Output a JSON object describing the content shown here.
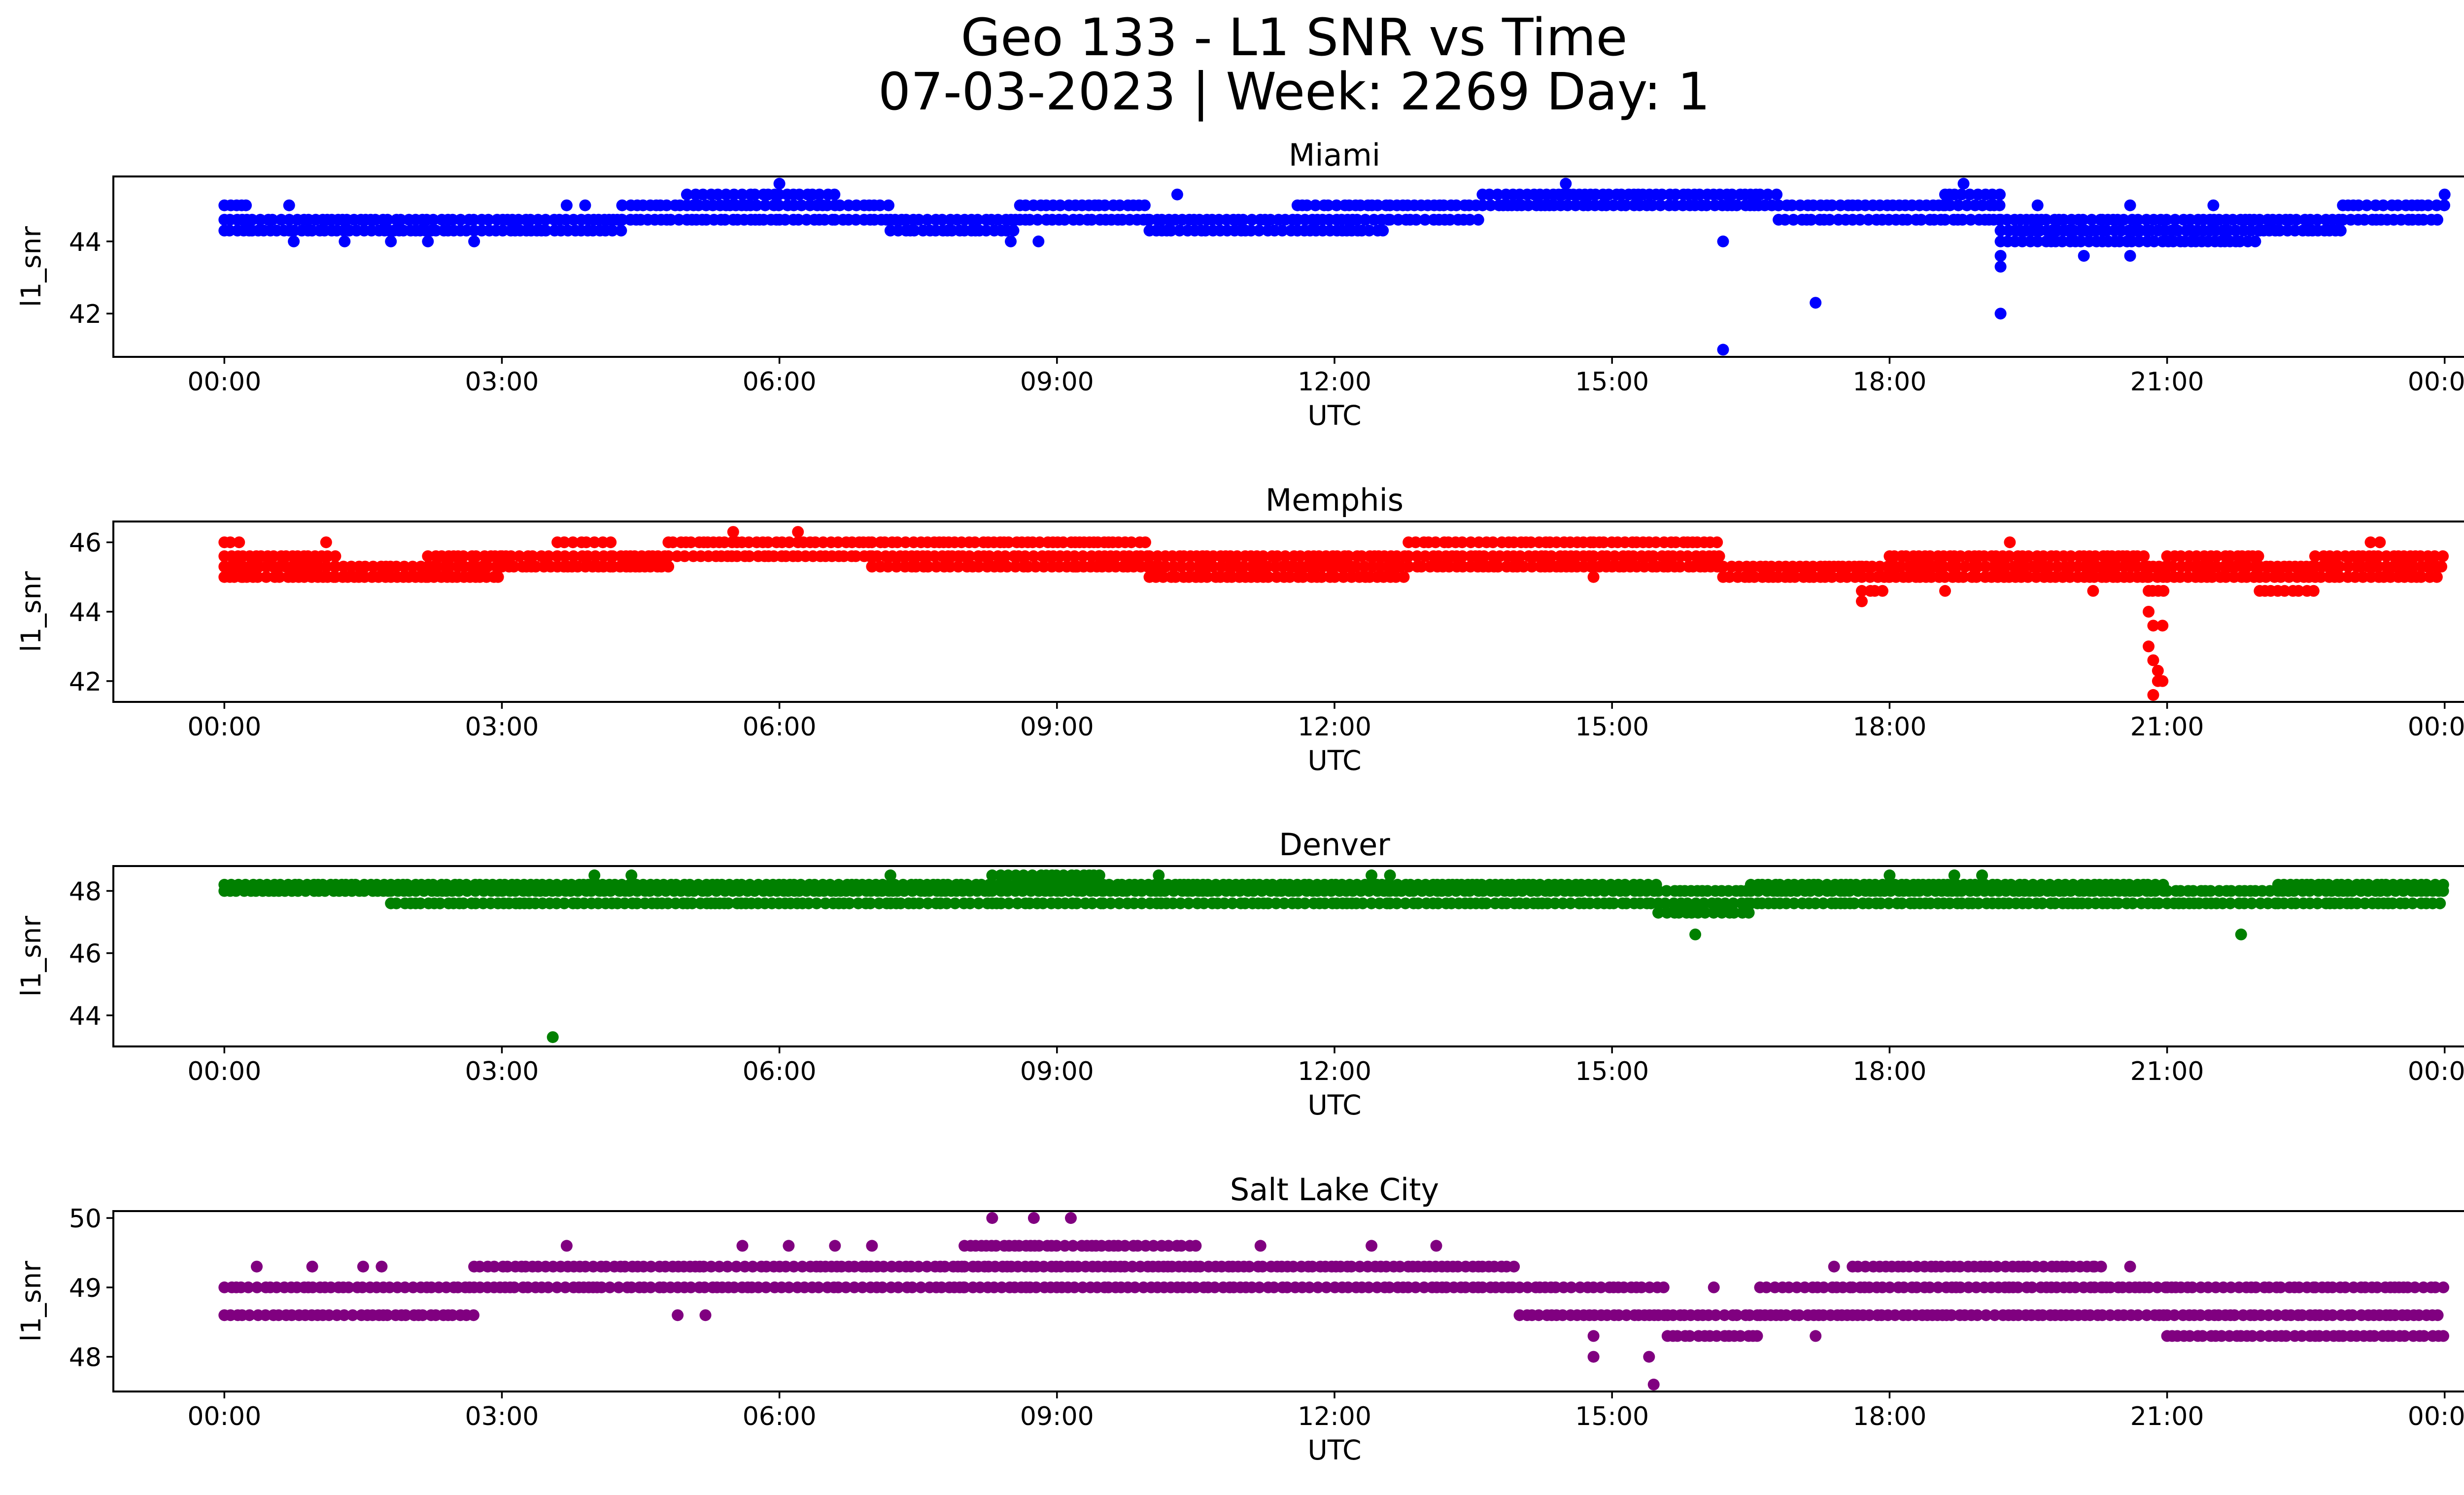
{
  "figure": {
    "title_line1": "Geo 133 - L1 SNR vs Time",
    "title_line2": "07-03-2023 | Week: 2269 Day: 1"
  },
  "chart_data": [
    {
      "type": "scatter",
      "title": "Miami",
      "xlabel": "UTC",
      "ylabel": "l1_snr",
      "color": "#0000ff",
      "xlim_hours": [
        -1.2,
        25.2
      ],
      "ylim": [
        40.8,
        45.8
      ],
      "xticks_hours": [
        0,
        3,
        6,
        9,
        12,
        15,
        18,
        21,
        24
      ],
      "xtick_labels": [
        "00:00",
        "03:00",
        "06:00",
        "09:00",
        "12:00",
        "15:00",
        "18:00",
        "21:00",
        "00:00"
      ],
      "yticks": [
        42,
        44
      ],
      "segments": [
        {
          "start": 0.0,
          "end": 0.3,
          "levels": [
            44.3,
            44.6,
            45.0
          ]
        },
        {
          "start": 0.3,
          "end": 4.3,
          "levels": [
            44.3,
            44.6
          ]
        },
        {
          "start": 4.3,
          "end": 5.0,
          "levels": [
            44.6,
            45.0
          ]
        },
        {
          "start": 5.0,
          "end": 6.6,
          "levels": [
            44.6,
            45.0,
            45.3
          ]
        },
        {
          "start": 6.6,
          "end": 7.2,
          "levels": [
            44.6,
            45.0
          ]
        },
        {
          "start": 7.2,
          "end": 8.6,
          "levels": [
            44.3,
            44.6
          ]
        },
        {
          "start": 8.6,
          "end": 10.0,
          "levels": [
            44.6,
            45.0
          ]
        },
        {
          "start": 10.0,
          "end": 11.6,
          "levels": [
            44.3,
            44.6
          ]
        },
        {
          "start": 11.6,
          "end": 12.6,
          "levels": [
            44.3,
            44.6,
            45.0
          ]
        },
        {
          "start": 12.6,
          "end": 13.6,
          "levels": [
            44.6,
            45.0
          ]
        },
        {
          "start": 13.6,
          "end": 16.8,
          "levels": [
            45.0,
            45.3
          ]
        },
        {
          "start": 16.8,
          "end": 17.6,
          "levels": [
            44.6,
            45.0
          ]
        },
        {
          "start": 17.6,
          "end": 18.6,
          "levels": [
            44.6,
            45.0
          ]
        },
        {
          "start": 18.6,
          "end": 19.2,
          "levels": [
            44.6,
            45.0,
            45.3
          ]
        },
        {
          "start": 19.2,
          "end": 20.3,
          "levels": [
            44.0,
            44.3,
            44.6
          ]
        },
        {
          "start": 20.3,
          "end": 22.0,
          "levels": [
            44.0,
            44.3,
            44.6
          ]
        },
        {
          "start": 22.0,
          "end": 22.9,
          "levels": [
            44.3,
            44.6
          ]
        },
        {
          "start": 22.9,
          "end": 24.0,
          "levels": [
            44.6,
            45.0
          ]
        }
      ],
      "scattered_points": [
        [
          0.7,
          45.0
        ],
        [
          0.75,
          44.0
        ],
        [
          1.3,
          44.0
        ],
        [
          1.8,
          44.0
        ],
        [
          2.2,
          44.0
        ],
        [
          2.7,
          44.0
        ],
        [
          3.7,
          45.0
        ],
        [
          3.9,
          45.0
        ],
        [
          6.0,
          45.6
        ],
        [
          6.0,
          44.6
        ],
        [
          8.5,
          44.0
        ],
        [
          8.8,
          44.0
        ],
        [
          10.3,
          45.3
        ],
        [
          14.5,
          45.6
        ],
        [
          16.2,
          44.0
        ],
        [
          16.2,
          41.0
        ],
        [
          17.2,
          42.3
        ],
        [
          18.8,
          45.6
        ],
        [
          19.2,
          43.6
        ],
        [
          19.2,
          43.3
        ],
        [
          19.2,
          42.0
        ],
        [
          19.6,
          45.0
        ],
        [
          20.1,
          43.6
        ],
        [
          20.6,
          43.6
        ],
        [
          20.6,
          45.0
        ],
        [
          21.5,
          45.0
        ],
        [
          24.0,
          45.3
        ]
      ]
    },
    {
      "type": "scatter",
      "title": "Memphis",
      "xlabel": "UTC",
      "ylabel": "l1_snr",
      "color": "#ff0000",
      "xlim_hours": [
        -1.2,
        25.2
      ],
      "ylim": [
        41.4,
        46.6
      ],
      "xticks_hours": [
        0,
        3,
        6,
        9,
        12,
        15,
        18,
        21,
        24
      ],
      "xtick_labels": [
        "00:00",
        "03:00",
        "06:00",
        "09:00",
        "12:00",
        "15:00",
        "18:00",
        "21:00",
        "00:00"
      ],
      "yticks": [
        42,
        44,
        46
      ],
      "segments": [
        {
          "start": 0.0,
          "end": 0.2,
          "levels": [
            45.0,
            45.3,
            45.6,
            46.0
          ]
        },
        {
          "start": 0.2,
          "end": 1.2,
          "levels": [
            45.0,
            45.3,
            45.6
          ]
        },
        {
          "start": 1.2,
          "end": 2.2,
          "levels": [
            45.0,
            45.3
          ]
        },
        {
          "start": 2.2,
          "end": 3.0,
          "levels": [
            45.0,
            45.3,
            45.6
          ]
        },
        {
          "start": 3.0,
          "end": 3.6,
          "levels": [
            45.3,
            45.6
          ]
        },
        {
          "start": 3.6,
          "end": 4.2,
          "levels": [
            45.3,
            45.6,
            46.0
          ]
        },
        {
          "start": 4.2,
          "end": 4.8,
          "levels": [
            45.3,
            45.6
          ]
        },
        {
          "start": 4.8,
          "end": 6.2,
          "levels": [
            45.6,
            46.0
          ]
        },
        {
          "start": 6.2,
          "end": 7.0,
          "levels": [
            45.6,
            46.0
          ]
        },
        {
          "start": 7.0,
          "end": 10.0,
          "levels": [
            45.3,
            45.6,
            46.0
          ]
        },
        {
          "start": 10.0,
          "end": 12.8,
          "levels": [
            45.0,
            45.3,
            45.6
          ]
        },
        {
          "start": 12.8,
          "end": 14.8,
          "levels": [
            45.3,
            45.6,
            46.0
          ]
        },
        {
          "start": 14.8,
          "end": 16.2,
          "levels": [
            45.3,
            45.6,
            46.0
          ]
        },
        {
          "start": 16.2,
          "end": 17.7,
          "levels": [
            45.0,
            45.3
          ]
        },
        {
          "start": 17.7,
          "end": 18.0,
          "levels": [
            44.6,
            45.0,
            45.3
          ]
        },
        {
          "start": 18.0,
          "end": 20.8,
          "levels": [
            45.0,
            45.3,
            45.6
          ]
        },
        {
          "start": 20.8,
          "end": 21.0,
          "levels": [
            44.6,
            45.0,
            45.3
          ]
        },
        {
          "start": 21.0,
          "end": 22.0,
          "levels": [
            45.0,
            45.3,
            45.6
          ]
        },
        {
          "start": 22.0,
          "end": 22.6,
          "levels": [
            44.6,
            45.0,
            45.3
          ]
        },
        {
          "start": 22.6,
          "end": 24.0,
          "levels": [
            45.0,
            45.3,
            45.6
          ]
        }
      ],
      "scattered_points": [
        [
          1.1,
          46.0
        ],
        [
          5.5,
          46.3
        ],
        [
          6.2,
          46.3
        ],
        [
          9.2,
          45.3
        ],
        [
          10.5,
          45.0
        ],
        [
          14.8,
          45.0
        ],
        [
          17.7,
          44.3
        ],
        [
          18.6,
          44.6
        ],
        [
          19.3,
          46.0
        ],
        [
          20.2,
          44.6
        ],
        [
          20.8,
          44.0
        ],
        [
          20.85,
          43.6
        ],
        [
          20.8,
          43.0
        ],
        [
          20.85,
          42.6
        ],
        [
          20.9,
          42.3
        ],
        [
          20.95,
          42.0
        ],
        [
          20.85,
          41.6
        ],
        [
          20.95,
          43.6
        ],
        [
          20.9,
          42.0
        ],
        [
          23.2,
          46.0
        ],
        [
          23.3,
          46.0
        ]
      ]
    },
    {
      "type": "scatter",
      "title": "Denver",
      "xlabel": "UTC",
      "ylabel": "l1_snr",
      "color": "#008000",
      "xlim_hours": [
        -1.2,
        25.2
      ],
      "ylim": [
        43.0,
        48.8
      ],
      "xticks_hours": [
        0,
        3,
        6,
        9,
        12,
        15,
        18,
        21,
        24
      ],
      "xtick_labels": [
        "00:00",
        "03:00",
        "06:00",
        "09:00",
        "12:00",
        "15:00",
        "18:00",
        "21:00",
        "00:00"
      ],
      "yticks": [
        44,
        46,
        48
      ],
      "segments": [
        {
          "start": 0.0,
          "end": 1.8,
          "levels": [
            48.0,
            48.2
          ]
        },
        {
          "start": 1.8,
          "end": 8.3,
          "levels": [
            47.6,
            48.0,
            48.2
          ]
        },
        {
          "start": 8.3,
          "end": 9.5,
          "levels": [
            47.6,
            48.0,
            48.2,
            48.5
          ]
        },
        {
          "start": 9.5,
          "end": 12.6,
          "levels": [
            47.6,
            48.0,
            48.2
          ]
        },
        {
          "start": 12.6,
          "end": 15.5,
          "levels": [
            47.6,
            48.0,
            48.2
          ]
        },
        {
          "start": 15.5,
          "end": 16.5,
          "levels": [
            47.3,
            47.6,
            48.0
          ]
        },
        {
          "start": 16.5,
          "end": 21.0,
          "levels": [
            47.6,
            48.0,
            48.2
          ]
        },
        {
          "start": 21.0,
          "end": 22.2,
          "levels": [
            47.6,
            48.0
          ]
        },
        {
          "start": 22.2,
          "end": 24.0,
          "levels": [
            47.6,
            48.0,
            48.2
          ]
        }
      ],
      "scattered_points": [
        [
          3.55,
          43.3
        ],
        [
          4.0,
          48.5
        ],
        [
          4.4,
          48.5
        ],
        [
          7.2,
          48.5
        ],
        [
          10.1,
          48.5
        ],
        [
          12.4,
          48.5
        ],
        [
          12.6,
          48.5
        ],
        [
          15.9,
          46.6
        ],
        [
          17.2,
          47.6
        ],
        [
          18.0,
          48.5
        ],
        [
          18.7,
          48.5
        ],
        [
          19.0,
          48.5
        ],
        [
          21.8,
          46.6
        ]
      ]
    },
    {
      "type": "scatter",
      "title": "Salt Lake City",
      "xlabel": "UTC",
      "ylabel": "l1_snr",
      "color": "#800080",
      "xlim_hours": [
        -1.2,
        25.2
      ],
      "ylim": [
        47.5,
        50.1
      ],
      "xticks_hours": [
        0,
        3,
        6,
        9,
        12,
        15,
        18,
        21,
        24
      ],
      "xtick_labels": [
        "00:00",
        "03:00",
        "06:00",
        "09:00",
        "12:00",
        "15:00",
        "18:00",
        "21:00",
        "00:00"
      ],
      "yticks": [
        48,
        49,
        50
      ],
      "segments": [
        {
          "start": 0.0,
          "end": 2.7,
          "levels": [
            48.6,
            49.0
          ]
        },
        {
          "start": 2.7,
          "end": 8.0,
          "levels": [
            49.0,
            49.3
          ]
        },
        {
          "start": 8.0,
          "end": 10.5,
          "levels": [
            49.0,
            49.3,
            49.6
          ]
        },
        {
          "start": 10.5,
          "end": 14.0,
          "levels": [
            49.0,
            49.3
          ]
        },
        {
          "start": 14.0,
          "end": 15.6,
          "levels": [
            48.6,
            49.0
          ]
        },
        {
          "start": 15.6,
          "end": 16.6,
          "levels": [
            48.3,
            48.6
          ]
        },
        {
          "start": 16.6,
          "end": 17.6,
          "levels": [
            48.6,
            49.0
          ]
        },
        {
          "start": 17.6,
          "end": 20.3,
          "levels": [
            48.6,
            49.0,
            49.3
          ]
        },
        {
          "start": 20.3,
          "end": 21.0,
          "levels": [
            48.6,
            49.0
          ]
        },
        {
          "start": 21.0,
          "end": 22.6,
          "levels": [
            48.3,
            48.6,
            49.0
          ]
        },
        {
          "start": 22.6,
          "end": 24.0,
          "levels": [
            48.3,
            48.6,
            49.0
          ]
        }
      ],
      "scattered_points": [
        [
          0.35,
          49.3
        ],
        [
          0.95,
          49.3
        ],
        [
          1.5,
          49.3
        ],
        [
          1.7,
          49.3
        ],
        [
          3.7,
          49.6
        ],
        [
          4.9,
          48.6
        ],
        [
          5.2,
          48.6
        ],
        [
          5.6,
          49.6
        ],
        [
          6.1,
          49.6
        ],
        [
          6.6,
          49.6
        ],
        [
          7.0,
          49.6
        ],
        [
          8.3,
          50.0
        ],
        [
          8.75,
          50.0
        ],
        [
          9.15,
          50.0
        ],
        [
          10.5,
          49.6
        ],
        [
          11.2,
          49.6
        ],
        [
          12.4,
          49.6
        ],
        [
          13.1,
          49.6
        ],
        [
          14.8,
          48.3
        ],
        [
          14.8,
          48.0
        ],
        [
          15.4,
          48.0
        ],
        [
          15.45,
          47.6
        ],
        [
          16.1,
          49.0
        ],
        [
          17.2,
          48.3
        ],
        [
          17.4,
          49.3
        ],
        [
          20.2,
          49.3
        ],
        [
          20.6,
          49.3
        ],
        [
          22.9,
          48.3
        ]
      ]
    }
  ]
}
